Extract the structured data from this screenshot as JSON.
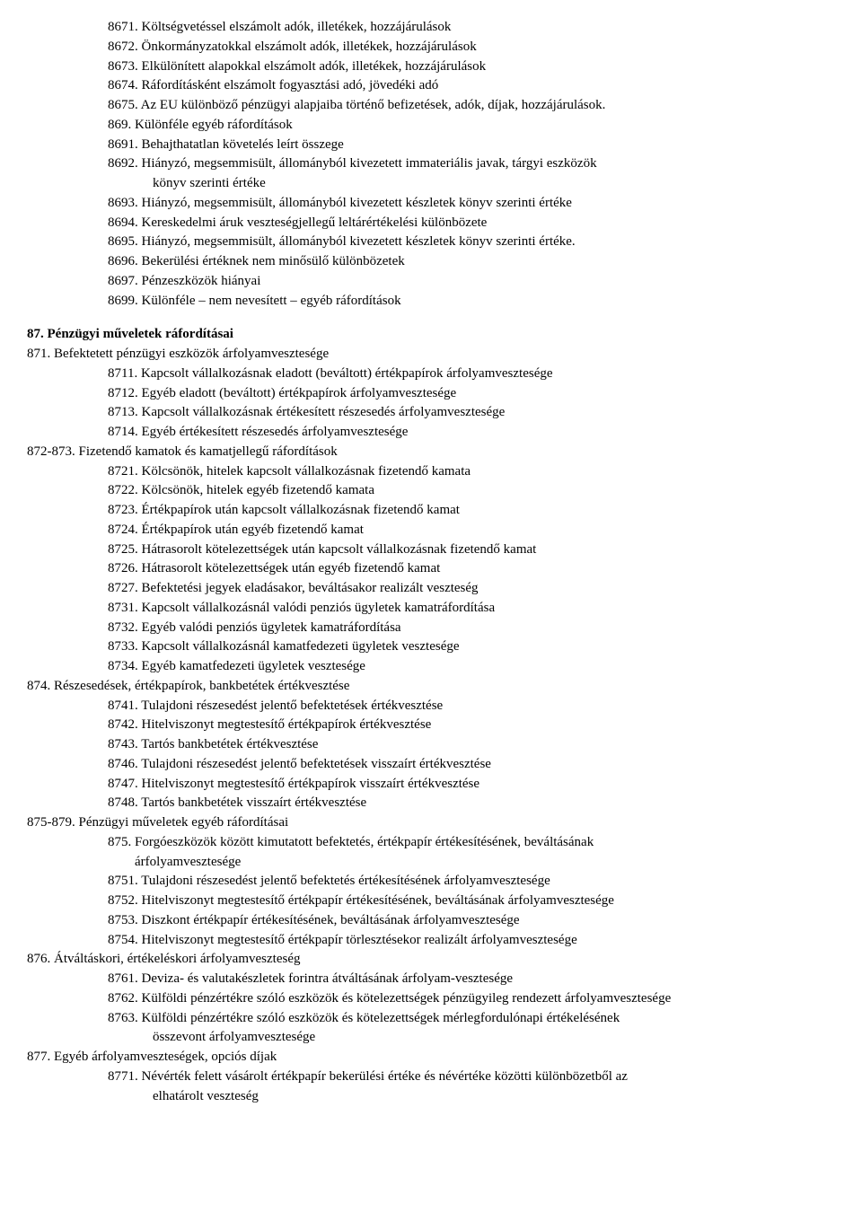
{
  "lines": [
    {
      "cls": "l1",
      "t": "8671. Költségvetéssel elszámolt adók, illetékek, hozzájárulások"
    },
    {
      "cls": "l1",
      "t": "8672. Önkormányzatokkal elszámolt adók, illetékek, hozzájárulások"
    },
    {
      "cls": "l1",
      "t": "8673. Elkülönített alapokkal elszámolt adók, illetékek, hozzájárulások"
    },
    {
      "cls": "l1",
      "t": "8674. Ráfordításként elszámolt fogyasztási adó, jövedéki adó"
    },
    {
      "cls": "l1",
      "t": "8675. Az EU különböző pénzügyi alapjaiba történő befizetések, adók, díjak, hozzájárulások."
    },
    {
      "cls": "l1",
      "t": "869. Különféle egyéb ráfordítások"
    },
    {
      "cls": "l1",
      "t": "8691. Behajthatatlan követelés leírt összege"
    },
    {
      "cls": "l1",
      "t": "8692. Hiányzó, megsemmisült, állományból kivezetett immateriális javak, tárgyi eszközök"
    },
    {
      "cls": "l2",
      "t": "könyv szerinti értéke"
    },
    {
      "cls": "l1",
      "t": "8693. Hiányzó, megsemmisült, állományból kivezetett készletek könyv szerinti értéke"
    },
    {
      "cls": "l1",
      "t": "8694. Kereskedelmi áruk veszteségjellegű leltárértékelési különbözete"
    },
    {
      "cls": "l1",
      "t": "8695. Hiányzó, megsemmisült, állományból kivezetett készletek könyv szerinti értéke."
    },
    {
      "cls": "l1",
      "t": "8696. Bekerülési értéknek nem minősülő különbözetek"
    },
    {
      "cls": "l1",
      "t": "8697. Pénzeszközök hiányai"
    },
    {
      "cls": "l1",
      "t": "8699. Különféle – nem nevesített – egyéb ráfordítások"
    },
    {
      "cls": "spacer"
    },
    {
      "cls": "l0b",
      "t": "87. Pénzügyi műveletek ráfordításai"
    },
    {
      "cls": "l0",
      "t": "871. Befektetett pénzügyi eszközök árfolyamvesztesége"
    },
    {
      "cls": "l1",
      "t": "8711. Kapcsolt vállalkozásnak eladott (beváltott) értékpapírok árfolyamvesztesége"
    },
    {
      "cls": "l1",
      "t": "8712. Egyéb eladott (beváltott) értékpapírok árfolyamvesztesége"
    },
    {
      "cls": "l1",
      "t": "8713. Kapcsolt vállalkozásnak értékesített részesedés árfolyamvesztesége"
    },
    {
      "cls": "l1",
      "t": "8714. Egyéb értékesített részesedés árfolyamvesztesége"
    },
    {
      "cls": "l0",
      "t": "872-873. Fizetendő kamatok és kamatjellegű ráfordítások"
    },
    {
      "cls": "l1",
      "t": "8721. Kölcsönök, hitelek kapcsolt vállalkozásnak fizetendő kamata"
    },
    {
      "cls": "l1",
      "t": "8722. Kölcsönök, hitelek egyéb fizetendő kamata"
    },
    {
      "cls": "l1",
      "t": "8723. Értékpapírok után kapcsolt vállalkozásnak fizetendő kamat"
    },
    {
      "cls": "l1",
      "t": "8724. Értékpapírok után egyéb fizetendő kamat"
    },
    {
      "cls": "l1",
      "t": "8725. Hátrasorolt kötelezettségek után kapcsolt vállalkozásnak fizetendő kamat"
    },
    {
      "cls": "l1",
      "t": "8726. Hátrasorolt kötelezettségek után egyéb fizetendő kamat"
    },
    {
      "cls": "l1",
      "t": "8727. Befektetési jegyek eladásakor, beváltásakor realizált veszteség"
    },
    {
      "cls": "l1",
      "t": "8731. Kapcsolt vállalkozásnál valódi penziós ügyletek kamatráfordítása"
    },
    {
      "cls": "l1",
      "t": "8732. Egyéb valódi penziós ügyletek kamatráfordítása"
    },
    {
      "cls": "l1",
      "t": "8733. Kapcsolt vállalkozásnál kamatfedezeti ügyletek vesztesége"
    },
    {
      "cls": "l1",
      "t": "8734. Egyéb kamatfedezeti ügyletek vesztesége"
    },
    {
      "cls": "l0",
      "t": "874. Részesedések, értékpapírok, bankbetétek értékvesztése"
    },
    {
      "cls": "l1",
      "t": "8741. Tulajdoni részesedést jelentő befektetések értékvesztése"
    },
    {
      "cls": "l1",
      "t": "8742. Hitelviszonyt megtestesítő értékpapírok értékvesztése"
    },
    {
      "cls": "l1",
      "t": "8743. Tartós bankbetétek értékvesztése"
    },
    {
      "cls": "l1",
      "t": "8746. Tulajdoni részesedést jelentő befektetések visszaírt értékvesztése"
    },
    {
      "cls": "l1",
      "t": "8747. Hitelviszonyt megtestesítő értékpapírok visszaírt értékvesztése"
    },
    {
      "cls": "l1",
      "t": "8748. Tartós bankbetétek visszaírt értékvesztése"
    },
    {
      "cls": "l0",
      "t": "875-879. Pénzügyi műveletek egyéb ráfordításai"
    },
    {
      "cls": "l1",
      "t": "875. Forgóeszközök között kimutatott befektetés, értékpapír értékesítésének, beváltásának"
    },
    {
      "cls": "sub",
      "t": "árfolyamvesztesége"
    },
    {
      "cls": "l1",
      "t": "8751. Tulajdoni részesedést jelentő befektetés értékesítésének árfolyamvesztesége"
    },
    {
      "cls": "l1",
      "t": "8752. Hitelviszonyt megtestesítő értékpapír értékesítésének, beváltásának árfolyamvesztesége"
    },
    {
      "cls": "l1",
      "t": "8753. Diszkont értékpapír értékesítésének, beváltásának árfolyamvesztesége"
    },
    {
      "cls": "l1",
      "t": "8754. Hitelviszonyt megtestesítő értékpapír törlesztésekor realizált árfolyamvesztesége"
    },
    {
      "cls": "l0",
      "t": "876. Átváltáskori, értékeléskori árfolyamveszteség"
    },
    {
      "cls": "l1",
      "t": "8761. Deviza- és valutakészletek forintra átváltásának árfolyam-vesztesége"
    },
    {
      "cls": "l1",
      "t": "8762. Külföldi pénzértékre szóló eszközök és kötelezettségek pénzügyileg rendezett árfolyamvesztesége"
    },
    {
      "cls": "l1",
      "t": "8763. Külföldi pénzértékre szóló eszközök és kötelezettségek mérlegfordulónapi értékelésének"
    },
    {
      "cls": "l2",
      "t": "összevont árfolyamvesztesége"
    },
    {
      "cls": "l0",
      "t": "877. Egyéb árfolyamveszteségek, opciós díjak"
    },
    {
      "cls": "l1",
      "t": "8771. Névérték felett vásárolt értékpapír bekerülési értéke és névértéke közötti különbözetből az"
    },
    {
      "cls": "l2",
      "t": "elhatárolt veszteség"
    }
  ]
}
